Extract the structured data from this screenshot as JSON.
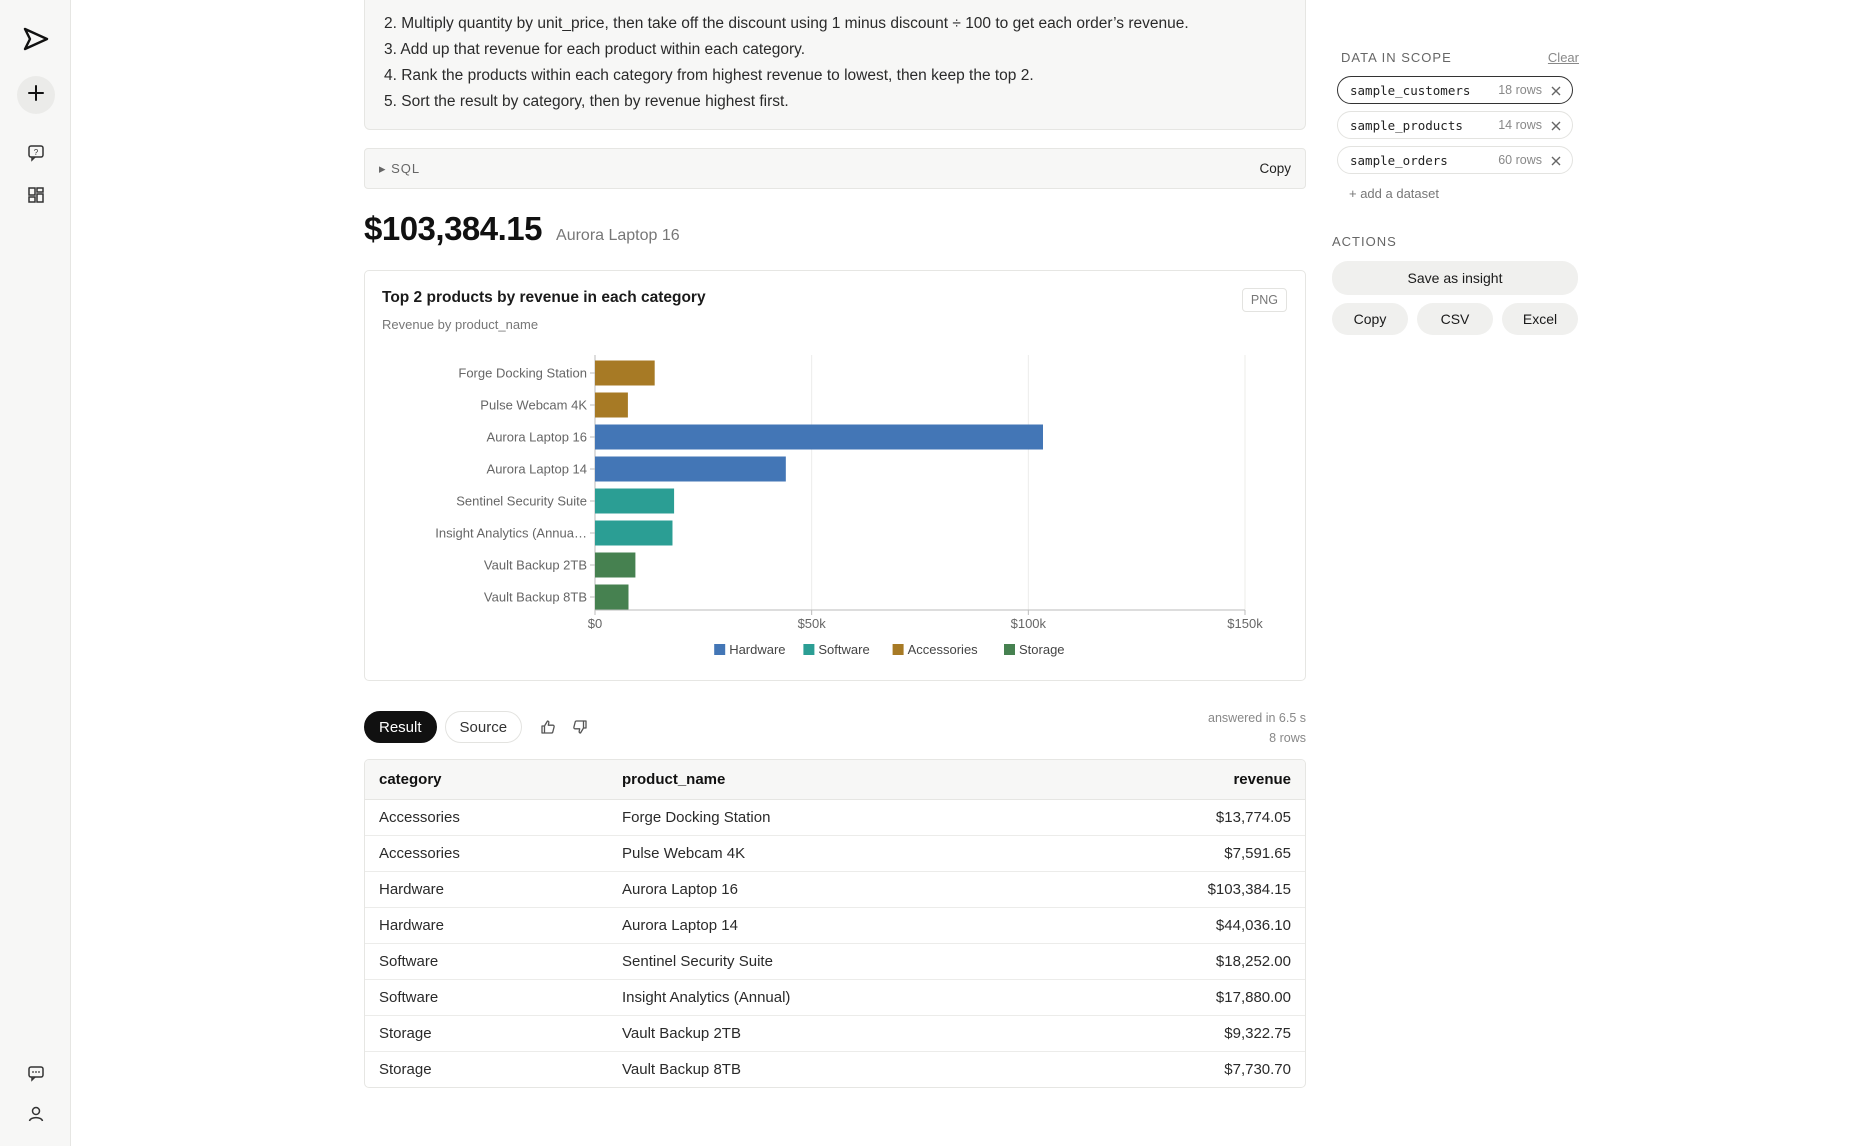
{
  "rail": {
    "icons": [
      "send-logo-icon",
      "plus-icon",
      "question-chat-icon",
      "dashboard-icon",
      "chat-icon",
      "user-icon"
    ]
  },
  "steps": [
    "2. Multiply quantity by unit_price, then take off the discount using 1 minus discount ÷ 100 to get each order’s revenue.",
    "3. Add up that revenue for each product within each category.",
    "4. Rank the products within each category from highest revenue to lowest, then keep the top 2.",
    "5. Sort the result by category, then by revenue highest first."
  ],
  "sql": {
    "toggle_label": "▸  SQL",
    "copy_label": "Copy"
  },
  "headline": {
    "value": "$103,384.15",
    "label": "Aurora Laptop 16"
  },
  "chart": {
    "png_label": "PNG"
  },
  "chart_data": {
    "type": "bar",
    "orientation": "horizontal",
    "title": "Top 2 products by revenue in each category",
    "subtitle": "Revenue by product_name",
    "categories": [
      "Forge Docking Station",
      "Pulse Webcam 4K",
      "Aurora Laptop 16",
      "Aurora Laptop 14",
      "Sentinel Security Suite",
      "Insight Analytics (Annua…",
      "Vault Backup 2TB",
      "Vault Backup 8TB"
    ],
    "values": [
      13774.05,
      7591.65,
      103384.15,
      44036.1,
      18252.0,
      17880.0,
      9322.75,
      7730.7
    ],
    "bar_groups": [
      "Accessories",
      "Accessories",
      "Hardware",
      "Hardware",
      "Software",
      "Software",
      "Storage",
      "Storage"
    ],
    "xlim": [
      0,
      150000
    ],
    "x_ticks": [
      0,
      50000,
      100000,
      150000
    ],
    "x_tick_labels": [
      "$0",
      "$50k",
      "$100k",
      "$150k"
    ],
    "grid": true,
    "legend_position": "bottom",
    "legend": [
      {
        "name": "Hardware",
        "color": "#4376b6"
      },
      {
        "name": "Software",
        "color": "#2b9e94"
      },
      {
        "name": "Accessories",
        "color": "#a77a25"
      },
      {
        "name": "Storage",
        "color": "#468150"
      }
    ]
  },
  "tabs": {
    "result": "Result",
    "source": "Source"
  },
  "meta": {
    "answered": "answered in 6.5 s",
    "rows": "8 rows"
  },
  "table": {
    "headers": [
      "category",
      "product_name",
      "revenue"
    ],
    "rows": [
      [
        "Accessories",
        "Forge Docking Station",
        "$13,774.05"
      ],
      [
        "Accessories",
        "Pulse Webcam 4K",
        "$7,591.65"
      ],
      [
        "Hardware",
        "Aurora Laptop 16",
        "$103,384.15"
      ],
      [
        "Hardware",
        "Aurora Laptop 14",
        "$44,036.10"
      ],
      [
        "Software",
        "Sentinel Security Suite",
        "$18,252.00"
      ],
      [
        "Software",
        "Insight Analytics (Annual)",
        "$17,880.00"
      ],
      [
        "Storage",
        "Vault Backup 2TB",
        "$9,322.75"
      ],
      [
        "Storage",
        "Vault Backup 8TB",
        "$7,730.70"
      ]
    ]
  },
  "side": {
    "scope_label": "DATA IN SCOPE",
    "clear_label": "Clear",
    "datasets": [
      {
        "name": "sample_customers",
        "rows": "18 rows",
        "selected": true
      },
      {
        "name": "sample_products",
        "rows": "14 rows",
        "selected": false
      },
      {
        "name": "sample_orders",
        "rows": "60 rows",
        "selected": false
      }
    ],
    "add_label": "+ add a dataset",
    "actions_label": "ACTIONS",
    "save_label": "Save as insight",
    "copy_label": "Copy",
    "csv_label": "CSV",
    "excel_label": "Excel"
  }
}
